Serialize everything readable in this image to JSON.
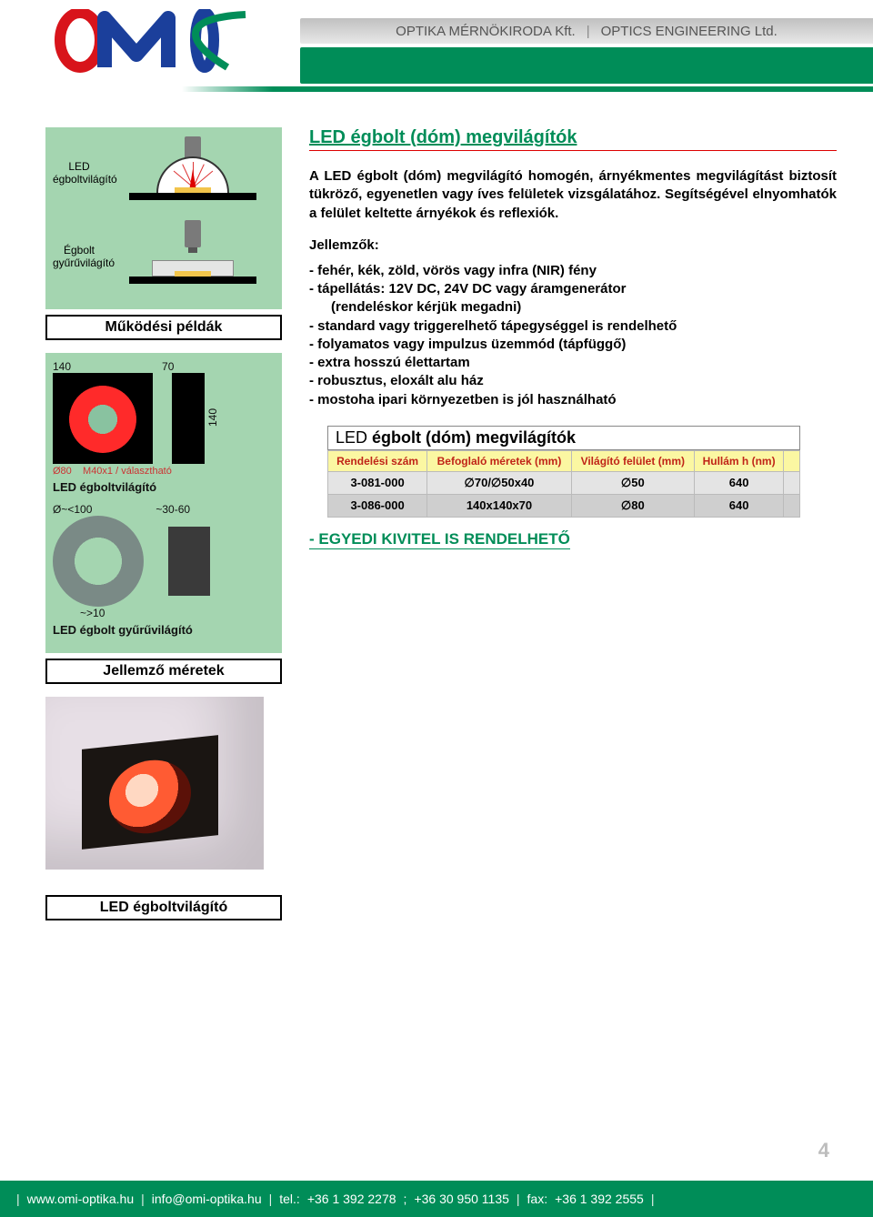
{
  "colors": {
    "brand_green": "#008d58",
    "brand_red": "#d8141b",
    "brand_blue": "#1b3f9b",
    "table_header_bg": "#fbf7a2",
    "table_header_fg": "#c02418",
    "row_even": "#e4e4e4",
    "row_odd": "#cfcfcf",
    "diagram_bg": "#a4d5b0",
    "page_num": "#bdbdbd"
  },
  "header": {
    "company_left": "OPTIKA MÉRNÖKIRODA Kft.",
    "company_right": "OPTICS ENGINEERING Ltd."
  },
  "left": {
    "diag1_label": "LED égboltvilágító",
    "diag2_label": "Égbolt gyűrűvilágító",
    "caption1": "Működési példák",
    "dims": {
      "w_label": "140",
      "w2_label": "70",
      "h_label": "140",
      "diam_label": "Ø80",
      "thread_label": "M40x1 / választható",
      "item1_caption": "LED égboltvilágító",
      "ring_outer": "Ø~<100",
      "ring_side": "~30-60",
      "ring_gap": "~>10",
      "item2_caption": "LED égbolt gyűrűvilágító"
    },
    "caption2": "Jellemző méretek",
    "caption3": "LED égboltvilágító"
  },
  "main": {
    "title": "LED égbolt (dóm) megvilágítók",
    "intro": "A LED égbolt (dóm) megvilágító homogén, árnyékmentes megvilágítást biztosít tükröző, egyenetlen vagy íves felületek vizsgálatához. Segítségével elnyomhatók a felület keltette árnyékok és reflexiók.",
    "features_heading": "Jellemzők:",
    "features": [
      "fehér, kék, zöld, vörös vagy infra (NIR) fény",
      "tápellátás: 12V DC, 24V DC vagy áramgenerátor",
      "(rendeléskor kérjük megadni)",
      "standard vagy triggerelhető tápegységgel is rendelhető",
      "folyamatos vagy impulzus üzemmód (tápfüggő)",
      "extra hosszú élettartam",
      "robusztus, eloxált alu ház",
      "mostoha ipari környezetben is jól használható"
    ],
    "table": {
      "title_prefix": "LED ",
      "title_main": "égbolt (dóm) megvilágítók",
      "columns": [
        "Rendelési szám",
        "Befoglaló méretek (mm)",
        "Világító felület (mm)",
        "Hullám h (nm)"
      ],
      "rows": [
        [
          "3-081-000",
          "∅70/∅50x40",
          "∅50",
          "640"
        ],
        [
          "3-086-000",
          "140x140x70",
          "∅80",
          "640"
        ]
      ]
    },
    "custom_note": "- EGYEDI KIVITEL IS RENDELHETŐ"
  },
  "page_number": "4",
  "footer": {
    "site": "www.omi-optika.hu",
    "email": "info@omi-optika.hu",
    "tel_label": "tel.:",
    "tel1": "+36 1 392 2278",
    "tel2": "+36 30 950 1135",
    "fax_label": "fax:",
    "fax": "+36 1 392 2555"
  }
}
